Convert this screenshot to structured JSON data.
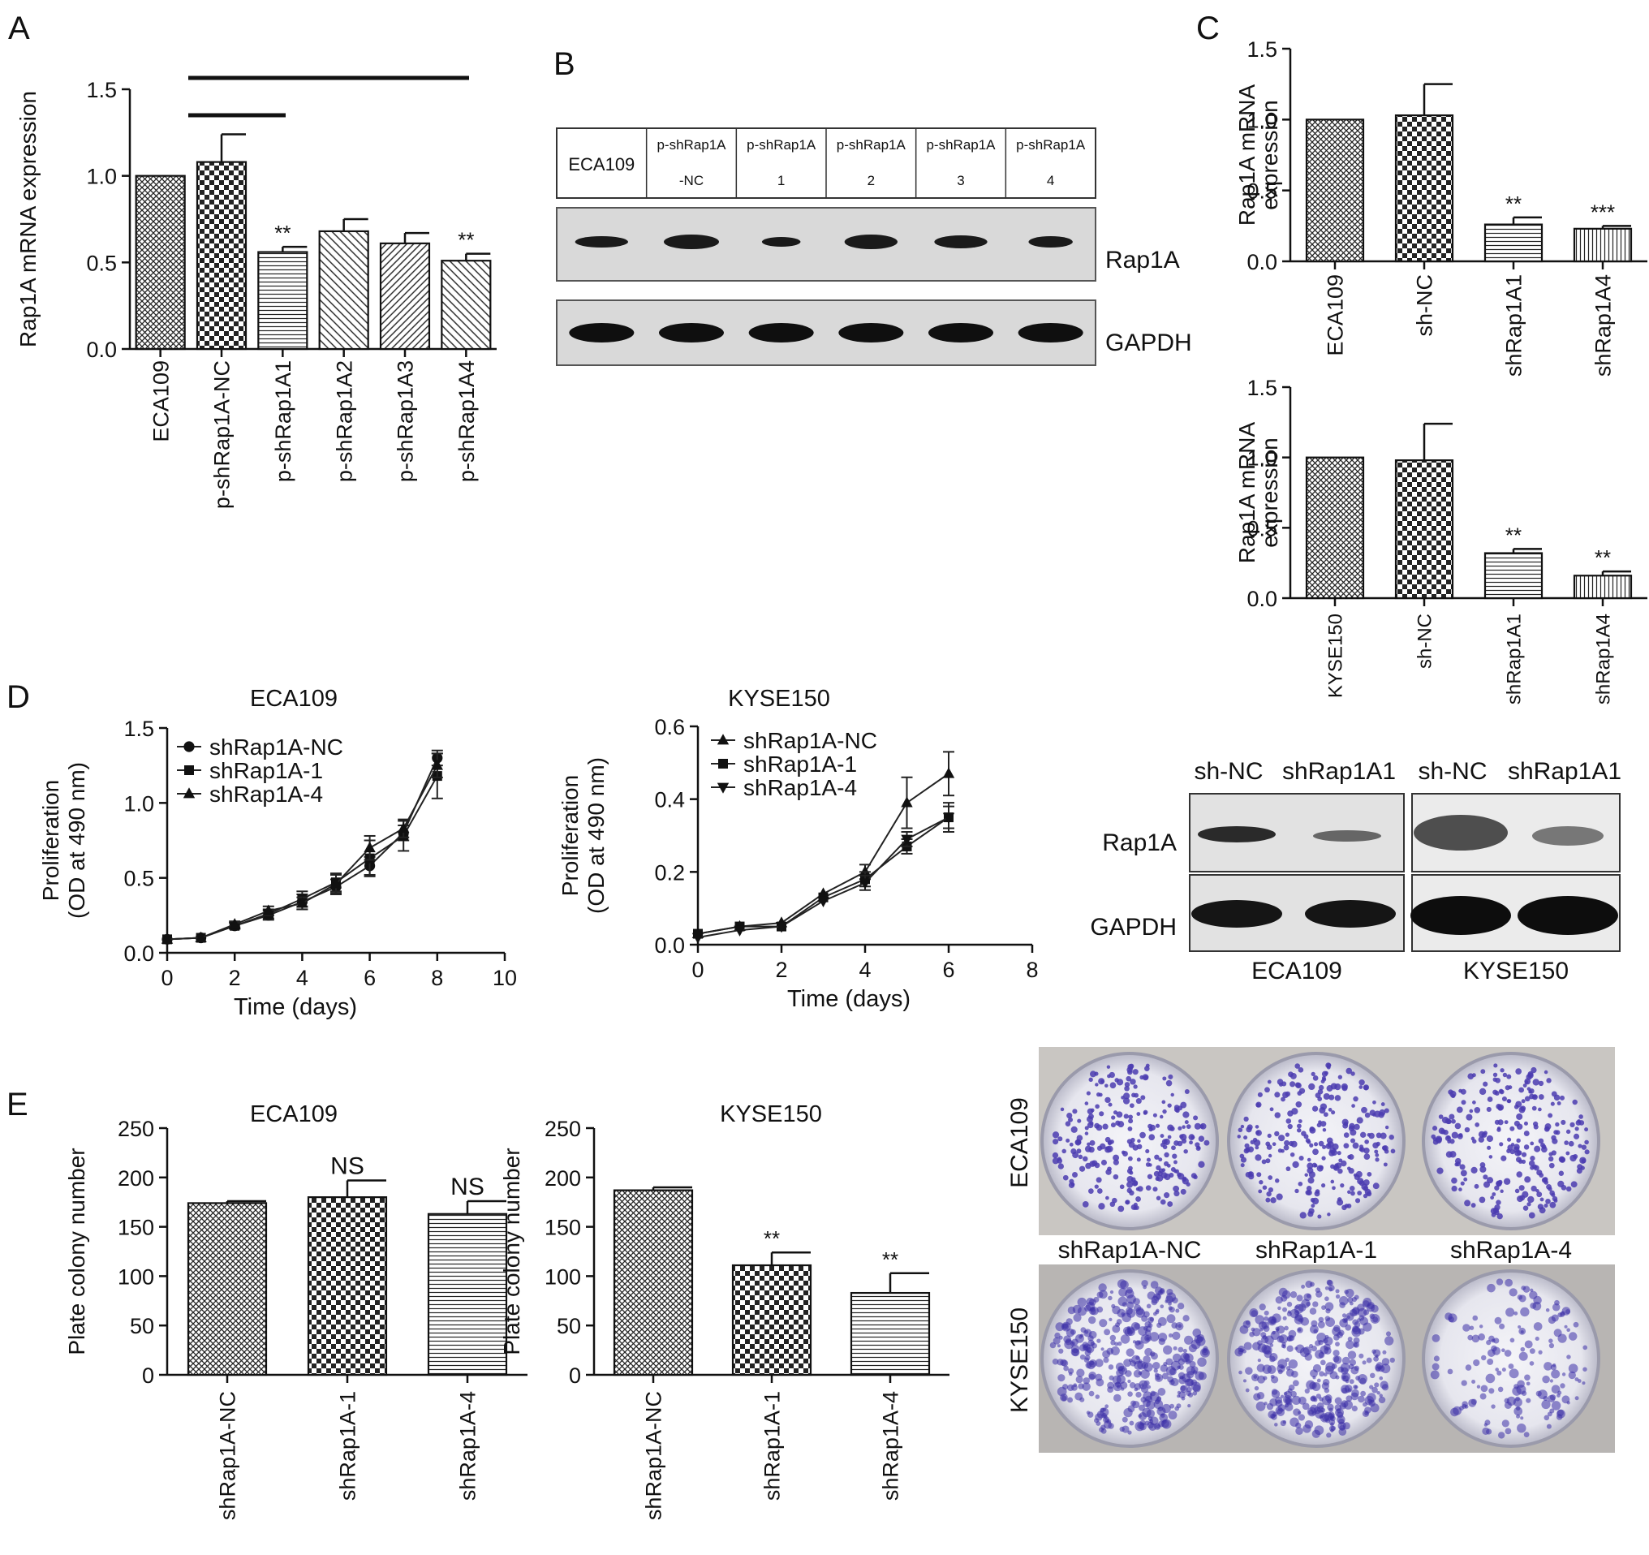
{
  "panel_letters": [
    "A",
    "B",
    "C",
    "D",
    "E"
  ],
  "chart_data": [
    {
      "id": "A",
      "type": "bar",
      "ylabel": "Rap1A mRNA expression",
      "categories": [
        "ECA109",
        "p-shRap1A-NC",
        "p-shRap1A1",
        "p-shRap1A2",
        "p-shRap1A3",
        "p-shRap1A4"
      ],
      "values": [
        1.0,
        1.08,
        0.56,
        0.68,
        0.61,
        0.51
      ],
      "errors": [
        0,
        0.16,
        0.03,
        0.07,
        0.06,
        0.04
      ],
      "significance": [
        "",
        "",
        "**",
        "",
        "",
        "**"
      ],
      "ylim": [
        0,
        1.5
      ],
      "yticks": [
        "0.0",
        "0.5",
        "1.0",
        "1.5"
      ],
      "patterns": [
        "grid",
        "check",
        "hlines",
        "diag",
        "diag2",
        "diag"
      ]
    },
    {
      "id": "C1",
      "type": "bar",
      "ylabel": [
        "Rap1A mRNA",
        "expression"
      ],
      "categories": [
        "ECA109",
        "sh-NC",
        "shRap1A1",
        "shRap1A4"
      ],
      "values": [
        1.0,
        1.03,
        0.26,
        0.23
      ],
      "errors": [
        0,
        0.22,
        0.05,
        0.02
      ],
      "significance": [
        "",
        "",
        "**",
        "***"
      ],
      "ylim": [
        0,
        1.5
      ],
      "yticks": [
        "0.0",
        "0.5",
        "1.0",
        "1.5"
      ],
      "patterns": [
        "grid",
        "check",
        "hlines",
        "vlines"
      ]
    },
    {
      "id": "C2",
      "type": "bar",
      "ylabel": [
        "Rap1A mRNA",
        "expression"
      ],
      "categories": [
        "KYSE150",
        "sh-NC",
        "shRap1A1",
        "shRap1A4"
      ],
      "values": [
        1.0,
        0.98,
        0.32,
        0.16
      ],
      "errors": [
        0,
        0.26,
        0.03,
        0.03
      ],
      "significance": [
        "",
        "",
        "**",
        "**"
      ],
      "ylim": [
        0,
        1.5
      ],
      "yticks": [
        "0.0",
        "0.5",
        "1.0",
        "1.5"
      ],
      "patterns": [
        "grid",
        "check",
        "hlines",
        "vlines"
      ]
    },
    {
      "id": "D1",
      "type": "line",
      "title": "ECA109",
      "xlabel": "Time (days)",
      "ylabel": [
        "Proliferation",
        "(OD at 490 nm)"
      ],
      "xlim": [
        0,
        10
      ],
      "ylim": [
        0,
        1.5
      ],
      "xticks": [
        "0",
        "2",
        "4",
        "6",
        "8",
        "10"
      ],
      "yticks": [
        "0.0",
        "0.5",
        "1.0",
        "1.5"
      ],
      "x": [
        0,
        1,
        2,
        3,
        4,
        5,
        6,
        7,
        8
      ],
      "series": [
        {
          "name": "shRap1A-NC",
          "marker": "circle",
          "values": [
            0.09,
            0.1,
            0.18,
            0.25,
            0.34,
            0.44,
            0.58,
            0.8,
            1.3
          ],
          "errors": [
            0.01,
            0.01,
            0.02,
            0.03,
            0.05,
            0.05,
            0.06,
            0.05,
            0.05
          ]
        },
        {
          "name": "shRap1A-1",
          "marker": "square",
          "values": [
            0.09,
            0.1,
            0.18,
            0.26,
            0.36,
            0.47,
            0.63,
            0.78,
            1.18
          ],
          "errors": [
            0.01,
            0.01,
            0.02,
            0.03,
            0.05,
            0.06,
            0.12,
            0.1,
            0.15
          ]
        },
        {
          "name": "shRap1A-4",
          "marker": "triangle",
          "values": [
            0.09,
            0.1,
            0.19,
            0.28,
            0.33,
            0.46,
            0.7,
            0.83,
            1.25
          ],
          "errors": [
            0.01,
            0.01,
            0.02,
            0.03,
            0.04,
            0.06,
            0.08,
            0.06,
            0.08
          ]
        }
      ]
    },
    {
      "id": "D2",
      "type": "line",
      "title": "KYSE150",
      "xlabel": "Time (days)",
      "ylabel": [
        "Proliferation",
        "(OD at 490 nm)"
      ],
      "xlim": [
        0,
        8
      ],
      "ylim": [
        0,
        0.6
      ],
      "xticks": [
        "0",
        "2",
        "4",
        "6",
        "8"
      ],
      "yticks": [
        "0.0",
        "0.2",
        "0.4",
        "0.6"
      ],
      "x": [
        0,
        1,
        2,
        3,
        4,
        5,
        6
      ],
      "series": [
        {
          "name": "shRap1A-NC",
          "marker": "triangle",
          "values": [
            0.03,
            0.05,
            0.06,
            0.14,
            0.2,
            0.39,
            0.47
          ],
          "errors": [
            0.01,
            0.01,
            0.01,
            0.01,
            0.02,
            0.07,
            0.06
          ]
        },
        {
          "name": "shRap1A-1",
          "marker": "square",
          "values": [
            0.03,
            0.05,
            0.05,
            0.13,
            0.18,
            0.27,
            0.35
          ],
          "errors": [
            0.01,
            0.01,
            0.01,
            0.01,
            0.02,
            0.02,
            0.03
          ]
        },
        {
          "name": "shRap1A-4",
          "marker": "triangle-down",
          "values": [
            0.02,
            0.04,
            0.05,
            0.12,
            0.17,
            0.29,
            0.35
          ],
          "errors": [
            0.01,
            0.01,
            0.01,
            0.01,
            0.02,
            0.02,
            0.04
          ]
        }
      ]
    },
    {
      "id": "E1",
      "type": "bar",
      "title": "ECA109",
      "ylabel": "Plate colony number",
      "categories": [
        "shRap1A-NC",
        "shRap1A-1",
        "shRap1A-4"
      ],
      "values": [
        174,
        180,
        163
      ],
      "errors": [
        2,
        17,
        13
      ],
      "significance": [
        "",
        "NS",
        "NS"
      ],
      "ylim": [
        0,
        250
      ],
      "yticks": [
        "0",
        "50",
        "100",
        "150",
        "200",
        "250"
      ],
      "patterns": [
        "grid",
        "check",
        "hlines"
      ]
    },
    {
      "id": "E2",
      "type": "bar",
      "title": "KYSE150",
      "ylabel": "Plate colony number",
      "categories": [
        "shRap1A-NC",
        "shRap1A-1",
        "shRap1A-4"
      ],
      "values": [
        187,
        111,
        83
      ],
      "errors": [
        3,
        13,
        20
      ],
      "significance": [
        "",
        "**",
        "**"
      ],
      "ylim": [
        0,
        250
      ],
      "yticks": [
        "0",
        "50",
        "100",
        "150",
        "200",
        "250"
      ],
      "patterns": [
        "grid",
        "check",
        "hlines"
      ]
    }
  ],
  "blot_b": {
    "lane_headers": [
      [
        "ECA109"
      ],
      [
        "p-shRap1A",
        "-NC"
      ],
      [
        "p-shRap1A",
        "1"
      ],
      [
        "p-shRap1A",
        "2"
      ],
      [
        "p-shRap1A",
        "3"
      ],
      [
        "p-shRap1A",
        "4"
      ]
    ],
    "rows": [
      "Rap1A",
      "GAPDH"
    ]
  },
  "blot_d": {
    "lane_labels": [
      "sh-NC",
      "shRap1A1",
      "sh-NC",
      "shRap1A1"
    ],
    "rows": [
      "Rap1A",
      "GAPDH"
    ],
    "groups": [
      "ECA109",
      "KYSE150"
    ]
  },
  "colony_e": {
    "row_labels": [
      "ECA109",
      "KYSE150"
    ],
    "col_labels": [
      "shRap1A-NC",
      "shRap1A-1",
      "shRap1A-4"
    ]
  }
}
